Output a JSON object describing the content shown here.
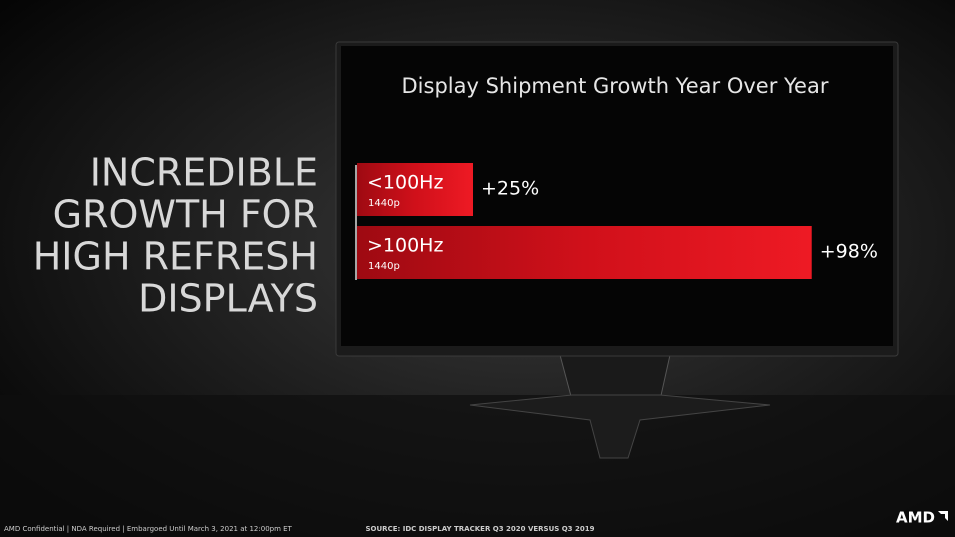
{
  "headline": [
    "INCREDIBLE",
    "GROWTH FOR",
    "HIGH REFRESH",
    "DISPLAYS"
  ],
  "chart_data": {
    "type": "bar",
    "orientation": "horizontal",
    "title": "Display Shipment Growth Year Over Year",
    "categories": [
      "<100Hz",
      ">100Hz"
    ],
    "category_sublabels": [
      "1440p",
      "1440p"
    ],
    "values": [
      25,
      98
    ],
    "value_labels": [
      "+25%",
      "+98%"
    ],
    "color": "#e3141f"
  },
  "footer": {
    "notice": "AMD Confidential | NDA Required | Embargoed Until March 3, 2021 at 12:00pm ET",
    "source": "SOURCE: IDC DISPLAY TRACKER Q3 2020 VERSUS Q3 2019",
    "logo": "AMD"
  }
}
